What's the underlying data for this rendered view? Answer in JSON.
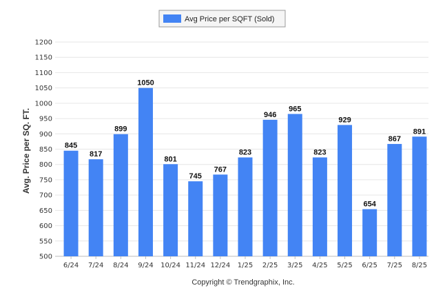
{
  "chart_data": {
    "type": "bar",
    "categories": [
      "6/24",
      "7/24",
      "8/24",
      "9/24",
      "10/24",
      "11/24",
      "12/24",
      "1/25",
      "2/25",
      "3/25",
      "4/25",
      "5/25",
      "6/25",
      "7/25",
      "8/25"
    ],
    "series": [
      {
        "name": "Avg Price per SQFT (Sold)",
        "values": [
          845,
          817,
          899,
          1050,
          801,
          745,
          767,
          823,
          946,
          965,
          823,
          929,
          654,
          867,
          891
        ]
      }
    ],
    "ylabel": "Avg. Price per SQ. FT.",
    "xlabel": "",
    "ylim": [
      500,
      1200
    ],
    "yticks": [
      500,
      550,
      600,
      650,
      700,
      750,
      800,
      850,
      900,
      950,
      1000,
      1050,
      1100,
      1150,
      1200
    ],
    "grid": true,
    "legend_position": "top-center",
    "bar_color": "#4384F4",
    "credit": "Copyright © Trendgraphix, Inc."
  }
}
